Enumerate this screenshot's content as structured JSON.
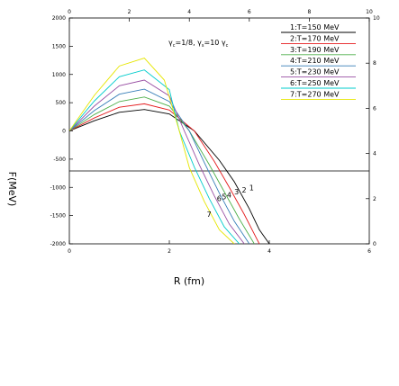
{
  "chart_data": {
    "type": "line",
    "xlabel": "R (fm)",
    "ylabel": "F(MeV)",
    "xlim": [
      0,
      6
    ],
    "ylim": [
      -2000,
      2000
    ],
    "xticks": [
      0,
      2,
      4,
      6
    ],
    "yticks": [
      -2000,
      -1500,
      -1000,
      -500,
      0,
      500,
      1000,
      1500,
      2000
    ],
    "top_ticks": [
      0,
      2,
      4,
      6,
      8,
      10
    ],
    "right_ticks": [
      0,
      2,
      4,
      6,
      8,
      10
    ],
    "annotation": "γ=1/8, γ=10 γ",
    "annotation_parts": {
      "a": "γ",
      "a_sub": "c",
      "b": "=1/8, γ",
      "b_sub": "s",
      "c": "=10 γ",
      "c_sub": "c"
    },
    "series": [
      {
        "name": "1:T=150 MeV",
        "color": "#000000",
        "x": [
          0.0,
          0.5,
          1.0,
          1.5,
          2.0,
          2.5,
          3.0,
          3.3,
          3.6,
          3.8,
          4.0
        ],
        "y": [
          0,
          180,
          330,
          380,
          300,
          0,
          -520,
          -900,
          -1380,
          -1750,
          -2000
        ]
      },
      {
        "name": "2:T=170 MeV",
        "color": "#e41a1c",
        "x": [
          0.0,
          0.5,
          1.0,
          1.5,
          2.0,
          2.5,
          2.9,
          3.2,
          3.5,
          3.8
        ],
        "y": [
          0,
          230,
          420,
          480,
          370,
          0,
          -540,
          -1000,
          -1480,
          -2000
        ]
      },
      {
        "name": "3:T=190 MeV",
        "color": "#4daf4a",
        "x": [
          0.0,
          0.5,
          1.0,
          1.5,
          2.0,
          2.4,
          2.8,
          3.1,
          3.4,
          3.7
        ],
        "y": [
          0,
          290,
          520,
          600,
          440,
          0,
          -600,
          -1080,
          -1560,
          -2000
        ]
      },
      {
        "name": "4:T=210 MeV",
        "color": "#377eb8",
        "x": [
          0.0,
          0.5,
          1.0,
          1.5,
          2.0,
          2.4,
          2.7,
          3.0,
          3.3,
          3.6
        ],
        "y": [
          0,
          360,
          650,
          740,
          520,
          0,
          -560,
          -1100,
          -1600,
          -2000
        ]
      },
      {
        "name": "5:T=230 MeV",
        "color": "#984ea3",
        "x": [
          0.0,
          0.5,
          1.0,
          1.5,
          2.0,
          2.3,
          2.6,
          2.9,
          3.2,
          3.5
        ],
        "y": [
          0,
          440,
          800,
          900,
          620,
          0,
          -600,
          -1150,
          -1650,
          -2000
        ]
      },
      {
        "name": "6:T=250 MeV",
        "color": "#00cccc",
        "x": [
          0.0,
          0.5,
          1.0,
          1.5,
          2.0,
          2.2,
          2.5,
          2.8,
          3.1,
          3.4
        ],
        "y": [
          0,
          530,
          960,
          1080,
          730,
          0,
          -640,
          -1200,
          -1700,
          -2000
        ]
      },
      {
        "name": "7:T=270 MeV",
        "color": "#e6e600",
        "x": [
          0.0,
          0.5,
          1.0,
          1.5,
          1.9,
          2.2,
          2.4,
          2.7,
          3.0,
          3.3
        ],
        "y": [
          0,
          630,
          1150,
          1290,
          900,
          0,
          -650,
          -1250,
          -1750,
          -2000
        ]
      }
    ],
    "curve_labels": [
      {
        "text": "1",
        "x": 3.6,
        "y": -1050
      },
      {
        "text": "3",
        "x": 3.3,
        "y": -1120
      },
      {
        "text": "2",
        "x": 3.45,
        "y": -1090
      },
      {
        "text": "4",
        "x": 3.15,
        "y": -1180
      },
      {
        "text": "5",
        "x": 3.05,
        "y": -1210
      },
      {
        "text": "6",
        "x": 2.95,
        "y": -1240
      },
      {
        "text": "7",
        "x": 2.75,
        "y": -1520
      }
    ]
  }
}
